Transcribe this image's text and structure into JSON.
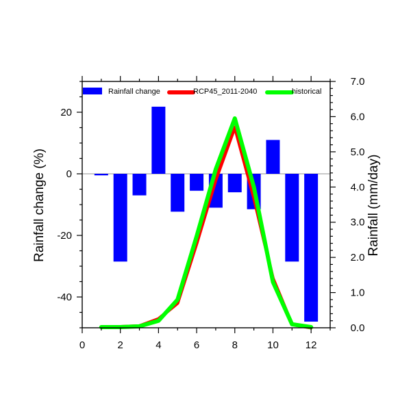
{
  "chart_data": {
    "type": "bar",
    "x": [
      1,
      2,
      3,
      4,
      5,
      6,
      7,
      8,
      9,
      10,
      11,
      12
    ],
    "left_axis": {
      "label": "Rainfall change (%)",
      "range": [
        -50,
        30
      ],
      "ticks": [
        -40,
        -20,
        0,
        20
      ],
      "tick_labels": [
        "-40",
        "-20",
        "0",
        "20"
      ]
    },
    "right_axis": {
      "label": "Rainfall (mm/day)",
      "range": [
        0.0,
        7.0
      ],
      "ticks": [
        0.0,
        1.0,
        2.0,
        3.0,
        4.0,
        5.0,
        6.0,
        7.0
      ],
      "tick_labels": [
        "0.0",
        "1.0",
        "2.0",
        "3.0",
        "4.0",
        "5.0",
        "6.0",
        "7.0"
      ]
    },
    "x_axis": {
      "range": [
        0,
        13
      ],
      "ticks": [
        0,
        2,
        4,
        6,
        8,
        10,
        12
      ],
      "tick_labels": [
        "0",
        "2",
        "4",
        "6",
        "8",
        "10",
        "12"
      ]
    },
    "series": [
      {
        "name": "Rainfall change",
        "type": "bar",
        "axis": "left",
        "color": "#0000ff",
        "values": [
          -0.5,
          -28.5,
          -7,
          21.8,
          -12.3,
          -5.5,
          -11,
          -6,
          -11.5,
          11,
          -28.5,
          -48
        ]
      },
      {
        "name": "RCP45_2011-2040",
        "type": "line",
        "axis": "right",
        "color": "#ff0000",
        "values": [
          0.02,
          0.03,
          0.05,
          0.25,
          0.7,
          2.4,
          4.2,
          5.7,
          3.7,
          1.4,
          0.1,
          0.0
        ]
      },
      {
        "name": "historical",
        "type": "line",
        "axis": "right",
        "color": "#00ff00",
        "values": [
          0.02,
          0.02,
          0.04,
          0.2,
          0.8,
          2.6,
          4.5,
          5.95,
          4.0,
          1.3,
          0.1,
          0.02
        ]
      }
    ],
    "legend": "top",
    "grid": false,
    "zero_line": true
  }
}
